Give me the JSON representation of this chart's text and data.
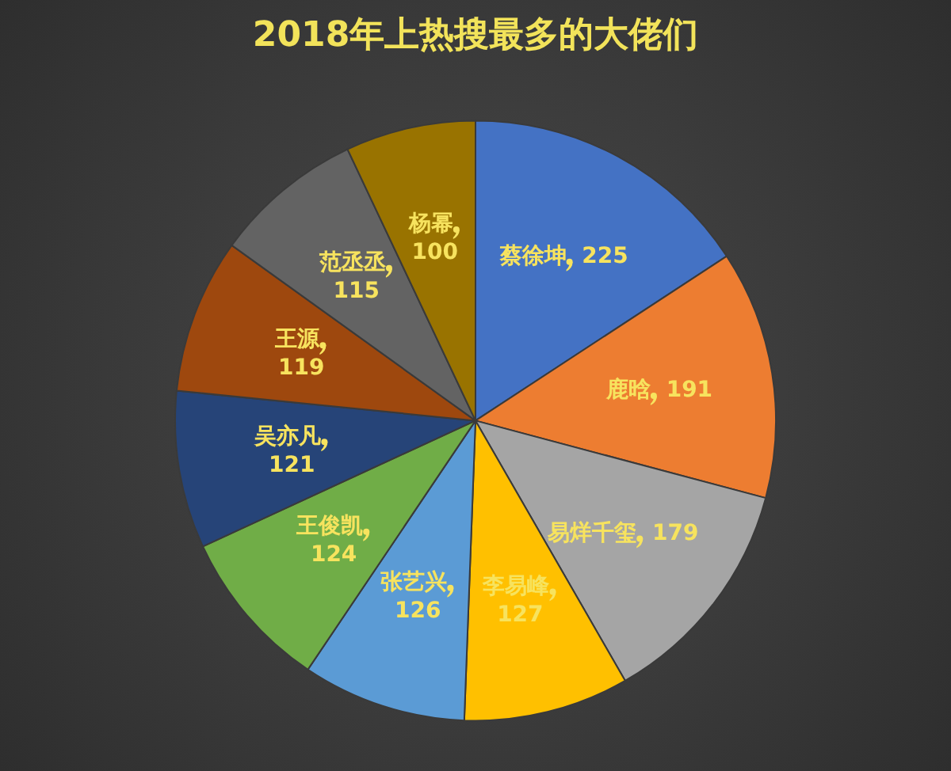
{
  "chart_data": {
    "type": "pie",
    "title": "2018年上热搜最多的大佬们",
    "categories": [
      "蔡徐坤",
      "鹿晗",
      "易烊千玺",
      "李易峰",
      "张艺兴",
      "王俊凯",
      "吴亦凡",
      "王源",
      "范丞丞",
      "杨幂"
    ],
    "values": [
      225,
      191,
      179,
      127,
      126,
      124,
      121,
      119,
      115,
      100
    ],
    "colors": [
      "#4472c4",
      "#ed7d31",
      "#a5a5a5",
      "#ffc000",
      "#5b9bd5",
      "#70ad47",
      "#264478",
      "#9e480e",
      "#636363",
      "#997300"
    ],
    "data_labels": true,
    "legend": false
  }
}
